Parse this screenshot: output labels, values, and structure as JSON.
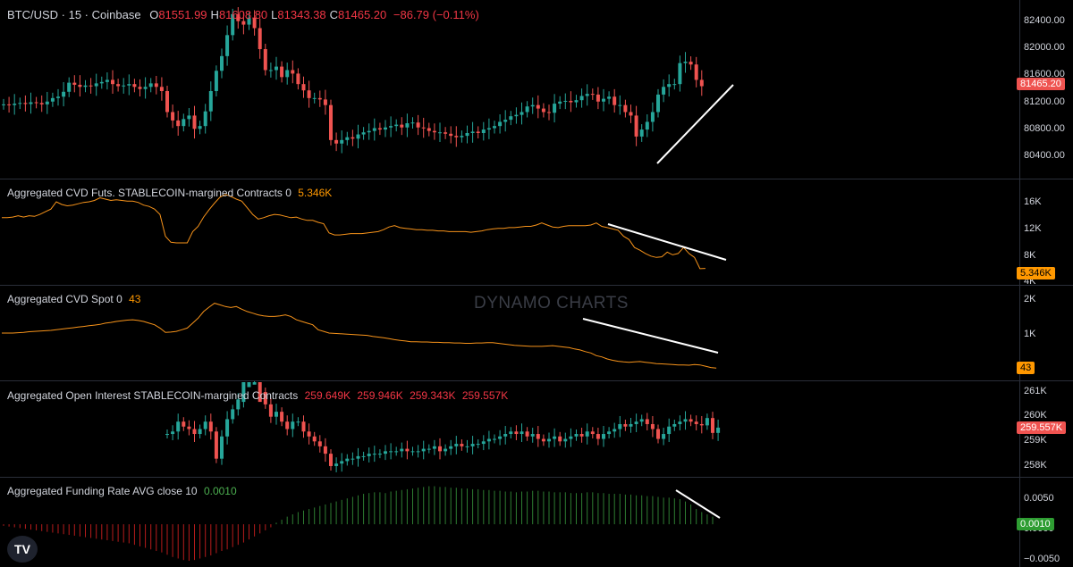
{
  "header": {
    "symbol": "BTC/USD · 15 · Coinbase",
    "ohlc": [
      {
        "k": "O",
        "v": "81551.99"
      },
      {
        "k": "H",
        "v": "81608.80"
      },
      {
        "k": "L",
        "v": "81343.38"
      },
      {
        "k": "C",
        "v": "81465.20"
      }
    ],
    "change": "−86.79 (−0.11%)"
  },
  "panes": {
    "cvd_futs": {
      "label": "Aggregated CVD Futs. STABLECOIN-margined Contracts 0",
      "value": "5.346K"
    },
    "cvd_spot": {
      "label": "Aggregated CVD Spot 0",
      "value": "43"
    },
    "oi": {
      "label": "Aggregated Open Interest STABLECOIN-margined Contracts",
      "values": [
        "259.649K",
        "259.946K",
        "259.343K",
        "259.557K"
      ]
    },
    "funding": {
      "label": "Aggregated Funding Rate AVG close 10",
      "value": "0.0010"
    }
  },
  "axes": {
    "price": [
      "82400.00",
      "82000.00",
      "81600.00",
      "81200.00",
      "80800.00",
      "80400.00"
    ],
    "cvd_futs": [
      "16K",
      "12K",
      "8K",
      "4K"
    ],
    "cvd_spot": [
      "2K",
      "1K"
    ],
    "oi": [
      "261K",
      "260K",
      "259K",
      "258K"
    ],
    "funding": [
      "0.0050",
      "0.0000",
      "−0.0050"
    ]
  },
  "tags": {
    "price": "81465.20",
    "cvd_futs": "5.346K",
    "cvd_spot": "43",
    "oi": "259.557K",
    "funding": "0.0010"
  },
  "watermark": "DYNAMO CHARTS",
  "logo": "TV",
  "colors": {
    "up": "#26a69a",
    "down": "#ef5350",
    "cvd_line": "#f7931a",
    "funding_up": "#2e7d32",
    "funding_down": "#b71c1c",
    "trendline": "#ffffff"
  },
  "chart_data": [
    {
      "type": "candlestick",
      "title": "BTC/USD · 15 · Coinbase",
      "ylim": [
        80200,
        82600
      ],
      "close": [
        81210,
        81200,
        81220,
        81230,
        81215,
        81240,
        81230,
        81210,
        81250,
        81300,
        81320,
        81390,
        81520,
        81490,
        81460,
        81480,
        81470,
        81510,
        81530,
        81560,
        81500,
        81470,
        81480,
        81500,
        81460,
        81430,
        81460,
        81510,
        81460,
        81400,
        81100,
        80980,
        80900,
        81000,
        81050,
        80860,
        80900,
        81110,
        81400,
        81690,
        81900,
        82200,
        82500,
        82400,
        82350,
        82450,
        82300,
        82000,
        81700,
        81700,
        81750,
        81600,
        81700,
        81650,
        81500,
        81410,
        81300,
        81300,
        81280,
        81200,
        80700,
        80650,
        80700,
        80740,
        80720,
        80780,
        80810,
        80830,
        80870,
        80850,
        80880,
        80900,
        80920,
        80880,
        80940,
        80950,
        80880,
        80870,
        80830,
        80810,
        80810,
        80790,
        80760,
        80740,
        80760,
        80800,
        80820,
        80800,
        80850,
        80870,
        80900,
        80960,
        80990,
        81040,
        81060,
        81100,
        81180,
        81200,
        81150,
        81100,
        81090,
        81220,
        81250,
        81260,
        81240,
        81270,
        81330,
        81360,
        81350,
        81250,
        81290,
        81320,
        81200,
        81200,
        81100,
        81050,
        80750,
        80850,
        80960,
        81100,
        81350,
        81460,
        81500,
        81500,
        81800,
        81820,
        81780,
        81560,
        81470
      ]
    },
    {
      "type": "line",
      "title": "Aggregated CVD Futs. STABLECOIN-margined Contracts 0",
      "ylim": [
        3000,
        18500
      ],
      "values": [
        13000,
        13000,
        13100,
        13300,
        13100,
        13300,
        13200,
        13500,
        13900,
        14300,
        15400,
        15000,
        14800,
        14900,
        15100,
        15300,
        15400,
        15600,
        16000,
        15800,
        15600,
        15700,
        15600,
        15500,
        15500,
        15300,
        14900,
        14700,
        14300,
        13500,
        10200,
        9300,
        9200,
        9200,
        9200,
        10900,
        11700,
        13100,
        14200,
        15200,
        16100,
        16500,
        16200,
        15800,
        15500,
        14500,
        13500,
        12800,
        13000,
        13300,
        13500,
        13400,
        13200,
        13000,
        13100,
        12800,
        12600,
        12600,
        12300,
        12100,
        10700,
        10400,
        10400,
        10500,
        10600,
        10600,
        10600,
        10700,
        10800,
        10900,
        11200,
        11600,
        11800,
        11500,
        11400,
        11300,
        11200,
        11200,
        11100,
        11100,
        11000,
        11000,
        10900,
        10900,
        10900,
        10900,
        10800,
        10900,
        11000,
        11200,
        11300,
        11400,
        11400,
        11500,
        11500,
        11600,
        11700,
        11700,
        11900,
        12200,
        11900,
        11600,
        11500,
        11700,
        11800,
        11800,
        11800,
        11800,
        11900,
        12200,
        11700,
        11500,
        11300,
        11100,
        10200,
        9700,
        8500,
        8100,
        7600,
        7200,
        7000,
        7100,
        7800,
        7400,
        7600,
        8500,
        7600,
        7000,
        5300,
        5346
      ]
    },
    {
      "type": "line",
      "title": "Aggregated CVD Spot 0",
      "ylim": [
        -300,
        2500
      ],
      "values": [
        1100,
        1100,
        1100,
        1110,
        1120,
        1140,
        1150,
        1160,
        1170,
        1180,
        1200,
        1220,
        1240,
        1260,
        1280,
        1300,
        1320,
        1340,
        1360,
        1400,
        1420,
        1450,
        1470,
        1490,
        1500,
        1480,
        1450,
        1400,
        1350,
        1250,
        1120,
        1130,
        1150,
        1200,
        1250,
        1400,
        1550,
        1750,
        1880,
        2000,
        1950,
        1900,
        1870,
        1900,
        1820,
        1750,
        1700,
        1650,
        1620,
        1600,
        1600,
        1620,
        1650,
        1600,
        1500,
        1450,
        1400,
        1350,
        1200,
        1150,
        1100,
        1090,
        1080,
        1070,
        1060,
        1050,
        1040,
        1030,
        1000,
        980,
        960,
        930,
        900,
        880,
        860,
        840,
        840,
        830,
        830,
        820,
        820,
        810,
        810,
        800,
        800,
        790,
        790,
        800,
        800,
        810,
        810,
        790,
        770,
        750,
        730,
        720,
        710,
        700,
        700,
        700,
        710,
        720,
        700,
        680,
        660,
        620,
        590,
        540,
        500,
        420,
        380,
        320,
        280,
        250,
        230,
        220,
        230,
        240,
        220,
        200,
        180,
        170,
        160,
        150,
        140,
        140,
        130,
        150,
        140,
        100,
        60,
        43
      ]
    },
    {
      "type": "candlestick",
      "title": "Aggregated Open Interest STABLECOIN-margined Contracts",
      "ylim": [
        257600,
        261400
      ],
      "close": [
        null,
        null,
        null,
        null,
        null,
        null,
        null,
        null,
        null,
        null,
        null,
        null,
        null,
        null,
        null,
        null,
        null,
        null,
        null,
        null,
        null,
        null,
        null,
        null,
        null,
        null,
        null,
        null,
        null,
        null,
        259300,
        259400,
        259800,
        259600,
        259500,
        259300,
        259500,
        259800,
        259400,
        258300,
        259200,
        259900,
        260300,
        260700,
        261500,
        261700,
        261800,
        261000,
        260500,
        260000,
        260200,
        259800,
        259500,
        259800,
        259800,
        259400,
        259200,
        259000,
        258800,
        258500,
        258000,
        258100,
        258200,
        258300,
        258300,
        258400,
        258400,
        258500,
        258500,
        258500,
        258600,
        258600,
        258600,
        258700,
        258600,
        258600,
        258600,
        258700,
        258700,
        258800,
        258600,
        258700,
        258800,
        258900,
        258800,
        258800,
        258900,
        258900,
        259000,
        259100,
        259100,
        259200,
        259300,
        259400,
        259300,
        259400,
        259200,
        259300,
        259100,
        259000,
        259100,
        259200,
        259000,
        259100,
        259200,
        259300,
        259200,
        259400,
        259300,
        259100,
        259300,
        259400,
        259500,
        259700,
        259600,
        259700,
        259800,
        259900,
        259700,
        259500,
        259100,
        259300,
        259600,
        259700,
        259800,
        259900,
        259800,
        259700,
        259649,
        259946,
        259343,
        259557
      ]
    },
    {
      "type": "bar",
      "title": "Aggregated Funding Rate AVG close 10",
      "ylim": [
        -0.0055,
        0.006
      ],
      "values": [
        -0.0002,
        -0.0003,
        -0.0004,
        -0.0005,
        -0.0006,
        -0.0007,
        -0.0008,
        -0.0009,
        -0.001,
        -0.0011,
        -0.0012,
        -0.0013,
        -0.0014,
        -0.0015,
        -0.0016,
        -0.0017,
        -0.0018,
        -0.0019,
        -0.002,
        -0.0021,
        -0.0022,
        -0.0023,
        -0.0024,
        -0.0025,
        -0.0027,
        -0.0029,
        -0.0031,
        -0.0033,
        -0.0035,
        -0.0037,
        -0.004,
        -0.0043,
        -0.0045,
        -0.0047,
        -0.0048,
        -0.0047,
        -0.0045,
        -0.0043,
        -0.0041,
        -0.0038,
        -0.0035,
        -0.0033,
        -0.003,
        -0.0027,
        -0.0024,
        -0.002,
        -0.0016,
        -0.0012,
        -0.0008,
        -0.0004,
        0.0002,
        0.0006,
        0.001,
        0.0013,
        0.0016,
        0.0018,
        0.002,
        0.0022,
        0.0024,
        0.0026,
        0.0028,
        0.003,
        0.0032,
        0.0034,
        0.0036,
        0.0038,
        0.004,
        0.0041,
        0.0042,
        0.0042,
        0.0041,
        0.0043,
        0.0044,
        0.0045,
        0.0046,
        0.0047,
        0.0048,
        0.0049,
        0.005,
        0.005,
        0.0049,
        0.0049,
        0.0048,
        0.0048,
        0.0047,
        0.0047,
        0.0046,
        0.0046,
        0.0045,
        0.0045,
        0.0044,
        0.0044,
        0.0043,
        0.0043,
        0.0042,
        0.0043,
        0.0043,
        0.0044,
        0.0044,
        0.0043,
        0.0043,
        0.0042,
        0.0042,
        0.0042,
        0.0041,
        0.0041,
        0.0041,
        0.0042,
        0.0042,
        0.0041,
        0.0041,
        0.004,
        0.004,
        0.004,
        0.0039,
        0.0039,
        0.0038,
        0.0038,
        0.0037,
        0.0037,
        0.0036,
        0.0035,
        0.0035,
        0.0034,
        0.0033,
        0.003,
        0.0026,
        0.002,
        0.0016,
        0.0013,
        0.001
      ]
    }
  ]
}
